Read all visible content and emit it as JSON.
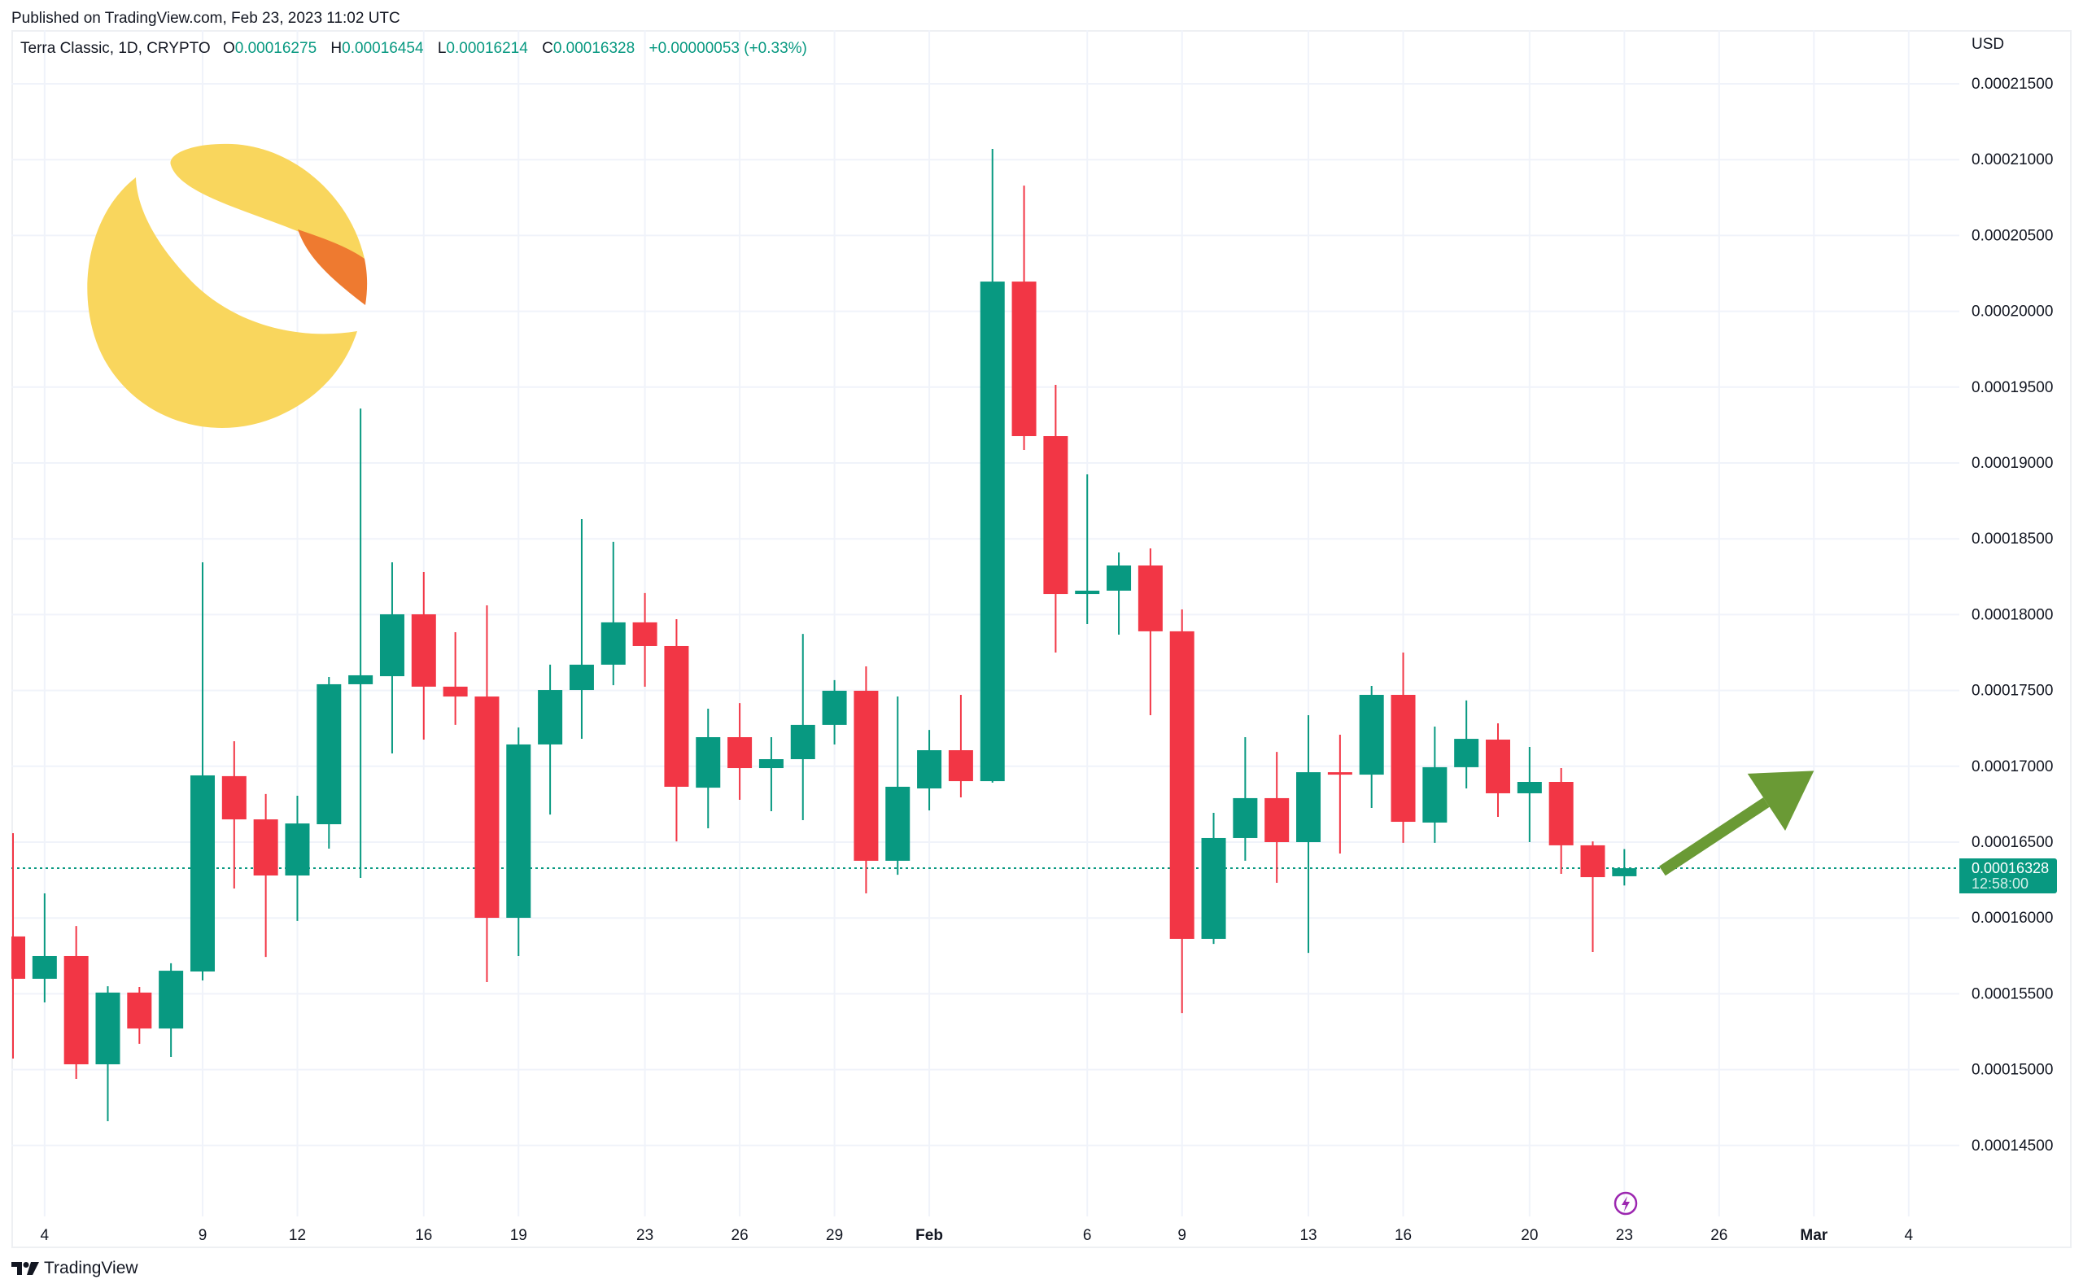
{
  "header": {
    "published": "Published on TradingView.com, Feb 23, 2023 11:02 UTC"
  },
  "legend": {
    "symbol": "Terra Classic, 1D, CRYPTO",
    "open_label": "O",
    "open": "0.00016275",
    "high_label": "H",
    "high": "0.00016454",
    "low_label": "L",
    "low": "0.00016214",
    "close_label": "C",
    "close": "0.00016328",
    "change": "+0.00000053 (+0.33%)"
  },
  "price_axis": {
    "currency": "USD",
    "ticks": [
      "0.00021500",
      "0.00021000",
      "0.00020500",
      "0.00020000",
      "0.00019500",
      "0.00019000",
      "0.00018500",
      "0.00018000",
      "0.00017500",
      "0.00017000",
      "0.00016500",
      "0.00016000",
      "0.00015500",
      "0.00015000",
      "0.00014500"
    ],
    "current_price": "0.00016328",
    "countdown": "12:58:00"
  },
  "time_axis": {
    "ticks": [
      {
        "label": "4",
        "index": 1,
        "bold": false
      },
      {
        "label": "9",
        "index": 6,
        "bold": false
      },
      {
        "label": "12",
        "index": 9,
        "bold": false
      },
      {
        "label": "16",
        "index": 13,
        "bold": false
      },
      {
        "label": "19",
        "index": 16,
        "bold": false
      },
      {
        "label": "23",
        "index": 20,
        "bold": false
      },
      {
        "label": "26",
        "index": 23,
        "bold": false
      },
      {
        "label": "29",
        "index": 26,
        "bold": false
      },
      {
        "label": "Feb",
        "index": 29,
        "bold": true
      },
      {
        "label": "6",
        "index": 34,
        "bold": false
      },
      {
        "label": "9",
        "index": 37,
        "bold": false
      },
      {
        "label": "13",
        "index": 41,
        "bold": false
      },
      {
        "label": "16",
        "index": 44,
        "bold": false
      },
      {
        "label": "20",
        "index": 48,
        "bold": false
      },
      {
        "label": "23",
        "index": 51,
        "bold": false
      },
      {
        "label": "26",
        "index": 54,
        "bold": false
      },
      {
        "label": "Mar",
        "index": 57,
        "bold": true
      },
      {
        "label": "4",
        "index": 60,
        "bold": false
      }
    ]
  },
  "colors": {
    "up": "#089981",
    "down": "#f23645",
    "grid": "#f0f3fa",
    "arrow": "#6a9a35",
    "event_icon": "#9c27b0",
    "logo_yellow": "#f9d65d",
    "logo_orange": "#ee7a30"
  },
  "icons": {
    "coin_logo": "terra-luna-classic-logo",
    "event": "lightning-bolt-icon",
    "arrow": "trend-up-arrow",
    "brand": "tradingview-logo"
  },
  "footer": {
    "brand": "TradingView"
  },
  "chart_data": {
    "type": "candlestick",
    "title": "Terra Classic, 1D, CRYPTO",
    "ylabel": "USD",
    "ylim": [
      0.0001425,
      0.0002175
    ],
    "grid": true,
    "x_label_first_day": "Jan 3, 2023",
    "candles": [
      {
        "date": "2023-01-03",
        "o": 0.00015878,
        "h": 0.00016559,
        "l": 0.00015073,
        "c": 0.00015599
      },
      {
        "date": "2023-01-04",
        "o": 0.00015599,
        "h": 0.00016162,
        "l": 0.00015443,
        "c": 0.00015749
      },
      {
        "date": "2023-01-05",
        "o": 0.00015749,
        "h": 0.00015947,
        "l": 0.00014939,
        "c": 0.00015035
      },
      {
        "date": "2023-01-06",
        "o": 0.00015035,
        "h": 0.0001555,
        "l": 0.0001466,
        "c": 0.00015508
      },
      {
        "date": "2023-01-07",
        "o": 0.00015508,
        "h": 0.00015545,
        "l": 0.0001517,
        "c": 0.00015271
      },
      {
        "date": "2023-01-08",
        "o": 0.00015271,
        "h": 0.00015701,
        "l": 0.00015084,
        "c": 0.00015652
      },
      {
        "date": "2023-01-09",
        "o": 0.00015647,
        "h": 0.00018345,
        "l": 0.00015588,
        "c": 0.0001694
      },
      {
        "date": "2023-01-10",
        "o": 0.00016935,
        "h": 0.00017165,
        "l": 0.00016194,
        "c": 0.0001665
      },
      {
        "date": "2023-01-11",
        "o": 0.0001665,
        "h": 0.00016817,
        "l": 0.00015743,
        "c": 0.0001628
      },
      {
        "date": "2023-01-12",
        "o": 0.0001628,
        "h": 0.00016806,
        "l": 0.0001598,
        "c": 0.00016623
      },
      {
        "date": "2023-01-13",
        "o": 0.00016618,
        "h": 0.00017589,
        "l": 0.00016457,
        "c": 0.00017541
      },
      {
        "date": "2023-01-14",
        "o": 0.00017541,
        "h": 0.00019359,
        "l": 0.00016264,
        "c": 0.000176
      },
      {
        "date": "2023-01-15",
        "o": 0.00017594,
        "h": 0.00018345,
        "l": 0.00017085,
        "c": 0.00018002
      },
      {
        "date": "2023-01-16",
        "o": 0.00018002,
        "h": 0.00018281,
        "l": 0.00017176,
        "c": 0.00017525
      },
      {
        "date": "2023-01-17",
        "o": 0.00017525,
        "h": 0.00017884,
        "l": 0.00017273,
        "c": 0.0001746
      },
      {
        "date": "2023-01-18",
        "o": 0.0001746,
        "h": 0.00018061,
        "l": 0.00015577,
        "c": 0.00016001
      },
      {
        "date": "2023-01-19",
        "o": 0.00016001,
        "h": 0.00017256,
        "l": 0.00015749,
        "c": 0.00017144
      },
      {
        "date": "2023-01-20",
        "o": 0.00017144,
        "h": 0.0001767,
        "l": 0.00016682,
        "c": 0.00017503
      },
      {
        "date": "2023-01-21",
        "o": 0.00017503,
        "h": 0.0001863,
        "l": 0.00017181,
        "c": 0.0001767
      },
      {
        "date": "2023-01-22",
        "o": 0.0001767,
        "h": 0.0001848,
        "l": 0.00017535,
        "c": 0.00017949
      },
      {
        "date": "2023-01-23",
        "o": 0.00017949,
        "h": 0.00018142,
        "l": 0.00017525,
        "c": 0.00017793
      },
      {
        "date": "2023-01-24",
        "o": 0.00017793,
        "h": 0.0001797,
        "l": 0.00016505,
        "c": 0.00016865
      },
      {
        "date": "2023-01-25",
        "o": 0.00016859,
        "h": 0.0001738,
        "l": 0.00016591,
        "c": 0.00017192
      },
      {
        "date": "2023-01-26",
        "o": 0.00017192,
        "h": 0.00017417,
        "l": 0.00016779,
        "c": 0.00016988
      },
      {
        "date": "2023-01-27",
        "o": 0.00016988,
        "h": 0.00017192,
        "l": 0.00016704,
        "c": 0.00017047
      },
      {
        "date": "2023-01-28",
        "o": 0.00017047,
        "h": 0.00017873,
        "l": 0.00016645,
        "c": 0.00017273
      },
      {
        "date": "2023-01-29",
        "o": 0.00017273,
        "h": 0.00017568,
        "l": 0.00017144,
        "c": 0.00017498
      },
      {
        "date": "2023-01-30",
        "o": 0.00017498,
        "h": 0.00017659,
        "l": 0.00016162,
        "c": 0.00016377
      },
      {
        "date": "2023-01-31",
        "o": 0.00016377,
        "h": 0.0001746,
        "l": 0.00016285,
        "c": 0.00016865
      },
      {
        "date": "2023-02-01",
        "o": 0.00016854,
        "h": 0.0001724,
        "l": 0.00016709,
        "c": 0.00017106
      },
      {
        "date": "2023-02-02",
        "o": 0.00017106,
        "h": 0.00017471,
        "l": 0.00016795,
        "c": 0.00016902
      },
      {
        "date": "2023-02-03",
        "o": 0.00016902,
        "h": 0.00021071,
        "l": 0.00016892,
        "c": 0.00020196
      },
      {
        "date": "2023-02-04",
        "o": 0.00020196,
        "h": 0.00020829,
        "l": 0.00019086,
        "c": 0.00019177
      },
      {
        "date": "2023-02-05",
        "o": 0.00019177,
        "h": 0.00019515,
        "l": 0.0001775,
        "c": 0.00018136
      },
      {
        "date": "2023-02-06",
        "o": 0.00018136,
        "h": 0.00018925,
        "l": 0.00017938,
        "c": 0.00018158
      },
      {
        "date": "2023-02-07",
        "o": 0.00018158,
        "h": 0.0001841,
        "l": 0.00017868,
        "c": 0.00018324
      },
      {
        "date": "2023-02-08",
        "o": 0.00018324,
        "h": 0.00018437,
        "l": 0.00017337,
        "c": 0.0001789
      },
      {
        "date": "2023-02-09",
        "o": 0.0001789,
        "h": 0.00018034,
        "l": 0.00015373,
        "c": 0.00015862
      },
      {
        "date": "2023-02-10",
        "o": 0.00015862,
        "h": 0.00016693,
        "l": 0.00015829,
        "c": 0.00016527
      },
      {
        "date": "2023-02-11",
        "o": 0.00016527,
        "h": 0.00017192,
        "l": 0.00016377,
        "c": 0.0001679
      },
      {
        "date": "2023-02-12",
        "o": 0.0001679,
        "h": 0.00017095,
        "l": 0.00016232,
        "c": 0.000165
      },
      {
        "date": "2023-02-13",
        "o": 0.000165,
        "h": 0.00017337,
        "l": 0.0001577,
        "c": 0.00016961
      },
      {
        "date": "2023-02-14",
        "o": 0.00016961,
        "h": 0.00017208,
        "l": 0.00016425,
        "c": 0.00016945
      },
      {
        "date": "2023-02-15",
        "o": 0.00016945,
        "h": 0.0001753,
        "l": 0.00016725,
        "c": 0.00017471
      },
      {
        "date": "2023-02-16",
        "o": 0.00017471,
        "h": 0.0001775,
        "l": 0.00016495,
        "c": 0.00016634
      },
      {
        "date": "2023-02-17",
        "o": 0.00016629,
        "h": 0.00017262,
        "l": 0.00016495,
        "c": 0.00016994
      },
      {
        "date": "2023-02-18",
        "o": 0.00016994,
        "h": 0.00017434,
        "l": 0.00016854,
        "c": 0.00017181
      },
      {
        "date": "2023-02-19",
        "o": 0.00017176,
        "h": 0.00017283,
        "l": 0.00016666,
        "c": 0.00016822
      },
      {
        "date": "2023-02-20",
        "o": 0.00016822,
        "h": 0.00017128,
        "l": 0.000165,
        "c": 0.00016897
      },
      {
        "date": "2023-02-21",
        "o": 0.00016897,
        "h": 0.00016988,
        "l": 0.00016291,
        "c": 0.00016479
      },
      {
        "date": "2023-02-22",
        "o": 0.00016479,
        "h": 0.00016505,
        "l": 0.00015776,
        "c": 0.00016269
      },
      {
        "date": "2023-02-23",
        "o": 0.00016275,
        "h": 0.00016454,
        "l": 0.00016214,
        "c": 0.00016328
      }
    ],
    "annotations": [
      {
        "type": "arrow",
        "direction": "up-right",
        "from_index": 52.2,
        "from_price": 0.0001631,
        "to_index": 57.0,
        "to_price": 0.0001697
      },
      {
        "type": "event",
        "icon": "lightning",
        "index": 51
      }
    ]
  }
}
